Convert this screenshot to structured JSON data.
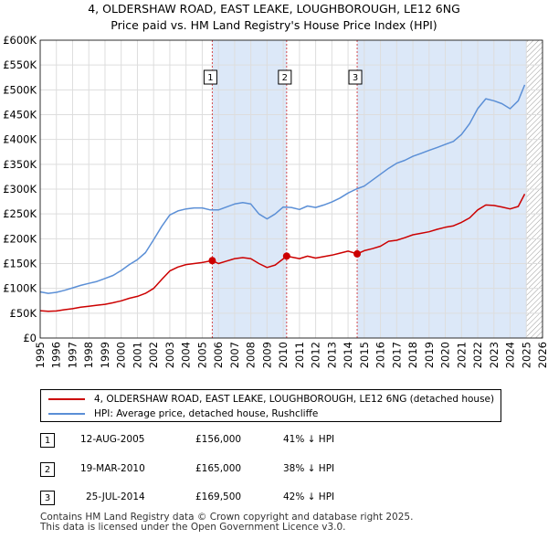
{
  "header": {
    "title": "4, OLDERSHAW ROAD, EAST LEAKE, LOUGHBOROUGH, LE12 6NG",
    "subtitle": "Price paid vs. HM Land Registry's House Price Index (HPI)"
  },
  "colors": {
    "property_line": "#cc0000",
    "hpi_line": "#5b8fd6",
    "shade": "#dce8f8",
    "marker_line": "#cc0000",
    "grid": "#dddddd",
    "hatch": "#999999"
  },
  "chart_data": {
    "type": "line",
    "title": "4, OLDERSHAW ROAD, EAST LEAKE, LOUGHBOROUGH, LE12 6NG",
    "subtitle": "Price paid vs. HM Land Registry's House Price Index (HPI)",
    "xlabel": "",
    "ylabel": "",
    "xlim": [
      1995,
      2026
    ],
    "ylim": [
      0,
      600000
    ],
    "grid": true,
    "x_ticks": [
      "1995",
      "1996",
      "1997",
      "1998",
      "1999",
      "2000",
      "2001",
      "2002",
      "2003",
      "2004",
      "2005",
      "2006",
      "2007",
      "2008",
      "2009",
      "2010",
      "2011",
      "2012",
      "2013",
      "2014",
      "2015",
      "2016",
      "2017",
      "2018",
      "2019",
      "2020",
      "2021",
      "2022",
      "2023",
      "2024",
      "2025",
      "2026"
    ],
    "y_ticks": [
      "£0",
      "£50K",
      "£100K",
      "£150K",
      "£200K",
      "£250K",
      "£300K",
      "£350K",
      "£400K",
      "£450K",
      "£500K",
      "£550K",
      "£600K"
    ],
    "y_tick_values": [
      0,
      50000,
      100000,
      150000,
      200000,
      250000,
      300000,
      350000,
      400000,
      450000,
      500000,
      550000,
      600000
    ],
    "series": [
      {
        "name": "4, OLDERSHAW ROAD, EAST LEAKE, LOUGHBOROUGH, LE12 6NG (detached house)",
        "x": [
          1995.0,
          1995.5,
          1996.0,
          1996.5,
          1997.0,
          1997.5,
          1998.0,
          1998.5,
          1999.0,
          1999.5,
          2000.0,
          2000.5,
          2001.0,
          2001.5,
          2002.0,
          2002.5,
          2003.0,
          2003.5,
          2004.0,
          2004.5,
          2005.0,
          2005.62,
          2006.0,
          2006.5,
          2007.0,
          2007.5,
          2008.0,
          2008.5,
          2009.0,
          2009.5,
          2010.21,
          2010.5,
          2011.0,
          2011.5,
          2012.0,
          2012.5,
          2013.0,
          2013.5,
          2014.0,
          2014.56,
          2015.0,
          2015.5,
          2016.0,
          2016.5,
          2017.0,
          2017.5,
          2018.0,
          2018.5,
          2019.0,
          2019.5,
          2020.0,
          2020.5,
          2021.0,
          2021.5,
          2022.0,
          2022.5,
          2023.0,
          2023.5,
          2024.0,
          2024.5,
          2024.9
        ],
        "values": [
          55000,
          54000,
          54500,
          57000,
          59000,
          62000,
          64000,
          66000,
          68000,
          71000,
          75000,
          80000,
          84000,
          90000,
          100000,
          118000,
          135000,
          143000,
          148000,
          150000,
          152000,
          156000,
          150000,
          155000,
          160000,
          162000,
          160000,
          150000,
          142000,
          147000,
          165000,
          163000,
          160000,
          165000,
          161000,
          164000,
          167000,
          171000,
          175000,
          169500,
          176000,
          180000,
          185000,
          195000,
          197000,
          202000,
          208000,
          211000,
          214000,
          219000,
          223000,
          226000,
          233000,
          242000,
          258000,
          268000,
          267000,
          264000,
          260000,
          265000,
          290000
        ]
      },
      {
        "name": "HPI: Average price, detached house, Rushcliffe",
        "x": [
          1995.0,
          1995.5,
          1996.0,
          1996.5,
          1997.0,
          1997.5,
          1998.0,
          1998.5,
          1999.0,
          1999.5,
          2000.0,
          2000.5,
          2001.0,
          2001.5,
          2002.0,
          2002.5,
          2003.0,
          2003.5,
          2004.0,
          2004.5,
          2005.0,
          2005.5,
          2006.0,
          2006.5,
          2007.0,
          2007.5,
          2008.0,
          2008.5,
          2009.0,
          2009.5,
          2010.0,
          2010.5,
          2011.0,
          2011.5,
          2012.0,
          2012.5,
          2013.0,
          2013.5,
          2014.0,
          2014.5,
          2015.0,
          2015.5,
          2016.0,
          2016.5,
          2017.0,
          2017.5,
          2018.0,
          2018.5,
          2019.0,
          2019.5,
          2020.0,
          2020.5,
          2021.0,
          2021.5,
          2022.0,
          2022.5,
          2023.0,
          2023.5,
          2024.0,
          2024.5,
          2024.9
        ],
        "values": [
          93000,
          90000,
          92000,
          96000,
          101000,
          106000,
          110000,
          114000,
          120000,
          126000,
          136000,
          148000,
          158000,
          172000,
          198000,
          225000,
          248000,
          256000,
          260000,
          262000,
          262000,
          258000,
          258000,
          264000,
          270000,
          273000,
          270000,
          250000,
          240000,
          250000,
          264000,
          263000,
          259000,
          266000,
          263000,
          268000,
          274000,
          282000,
          292000,
          300000,
          306000,
          318000,
          330000,
          342000,
          352000,
          358000,
          366000,
          372000,
          378000,
          384000,
          390000,
          396000,
          410000,
          432000,
          462000,
          482000,
          478000,
          472000,
          462000,
          478000,
          510000
        ]
      }
    ],
    "sales": [
      {
        "label": "1",
        "x": 2005.62,
        "value": 156000
      },
      {
        "label": "2",
        "x": 2010.21,
        "value": 165000
      },
      {
        "label": "3",
        "x": 2014.56,
        "value": 169500
      }
    ],
    "data_end_x": 2025.0
  },
  "legend": [
    {
      "label": "4, OLDERSHAW ROAD, EAST LEAKE, LOUGHBOROUGH, LE12 6NG (detached house)"
    },
    {
      "label": "HPI: Average price, detached house, Rushcliffe"
    }
  ],
  "transactions": [
    {
      "num": "1",
      "date": "12-AUG-2005",
      "price": "£156,000",
      "hpi": "41% ↓ HPI"
    },
    {
      "num": "2",
      "date": "19-MAR-2010",
      "price": "£165,000",
      "hpi": "38% ↓ HPI"
    },
    {
      "num": "3",
      "date": "25-JUL-2014",
      "price": "£169,500",
      "hpi": "42% ↓ HPI"
    }
  ],
  "footer": {
    "line1": "Contains HM Land Registry data © Crown copyright and database right 2025.",
    "line2": "This data is licensed under the Open Government Licence v3.0."
  }
}
